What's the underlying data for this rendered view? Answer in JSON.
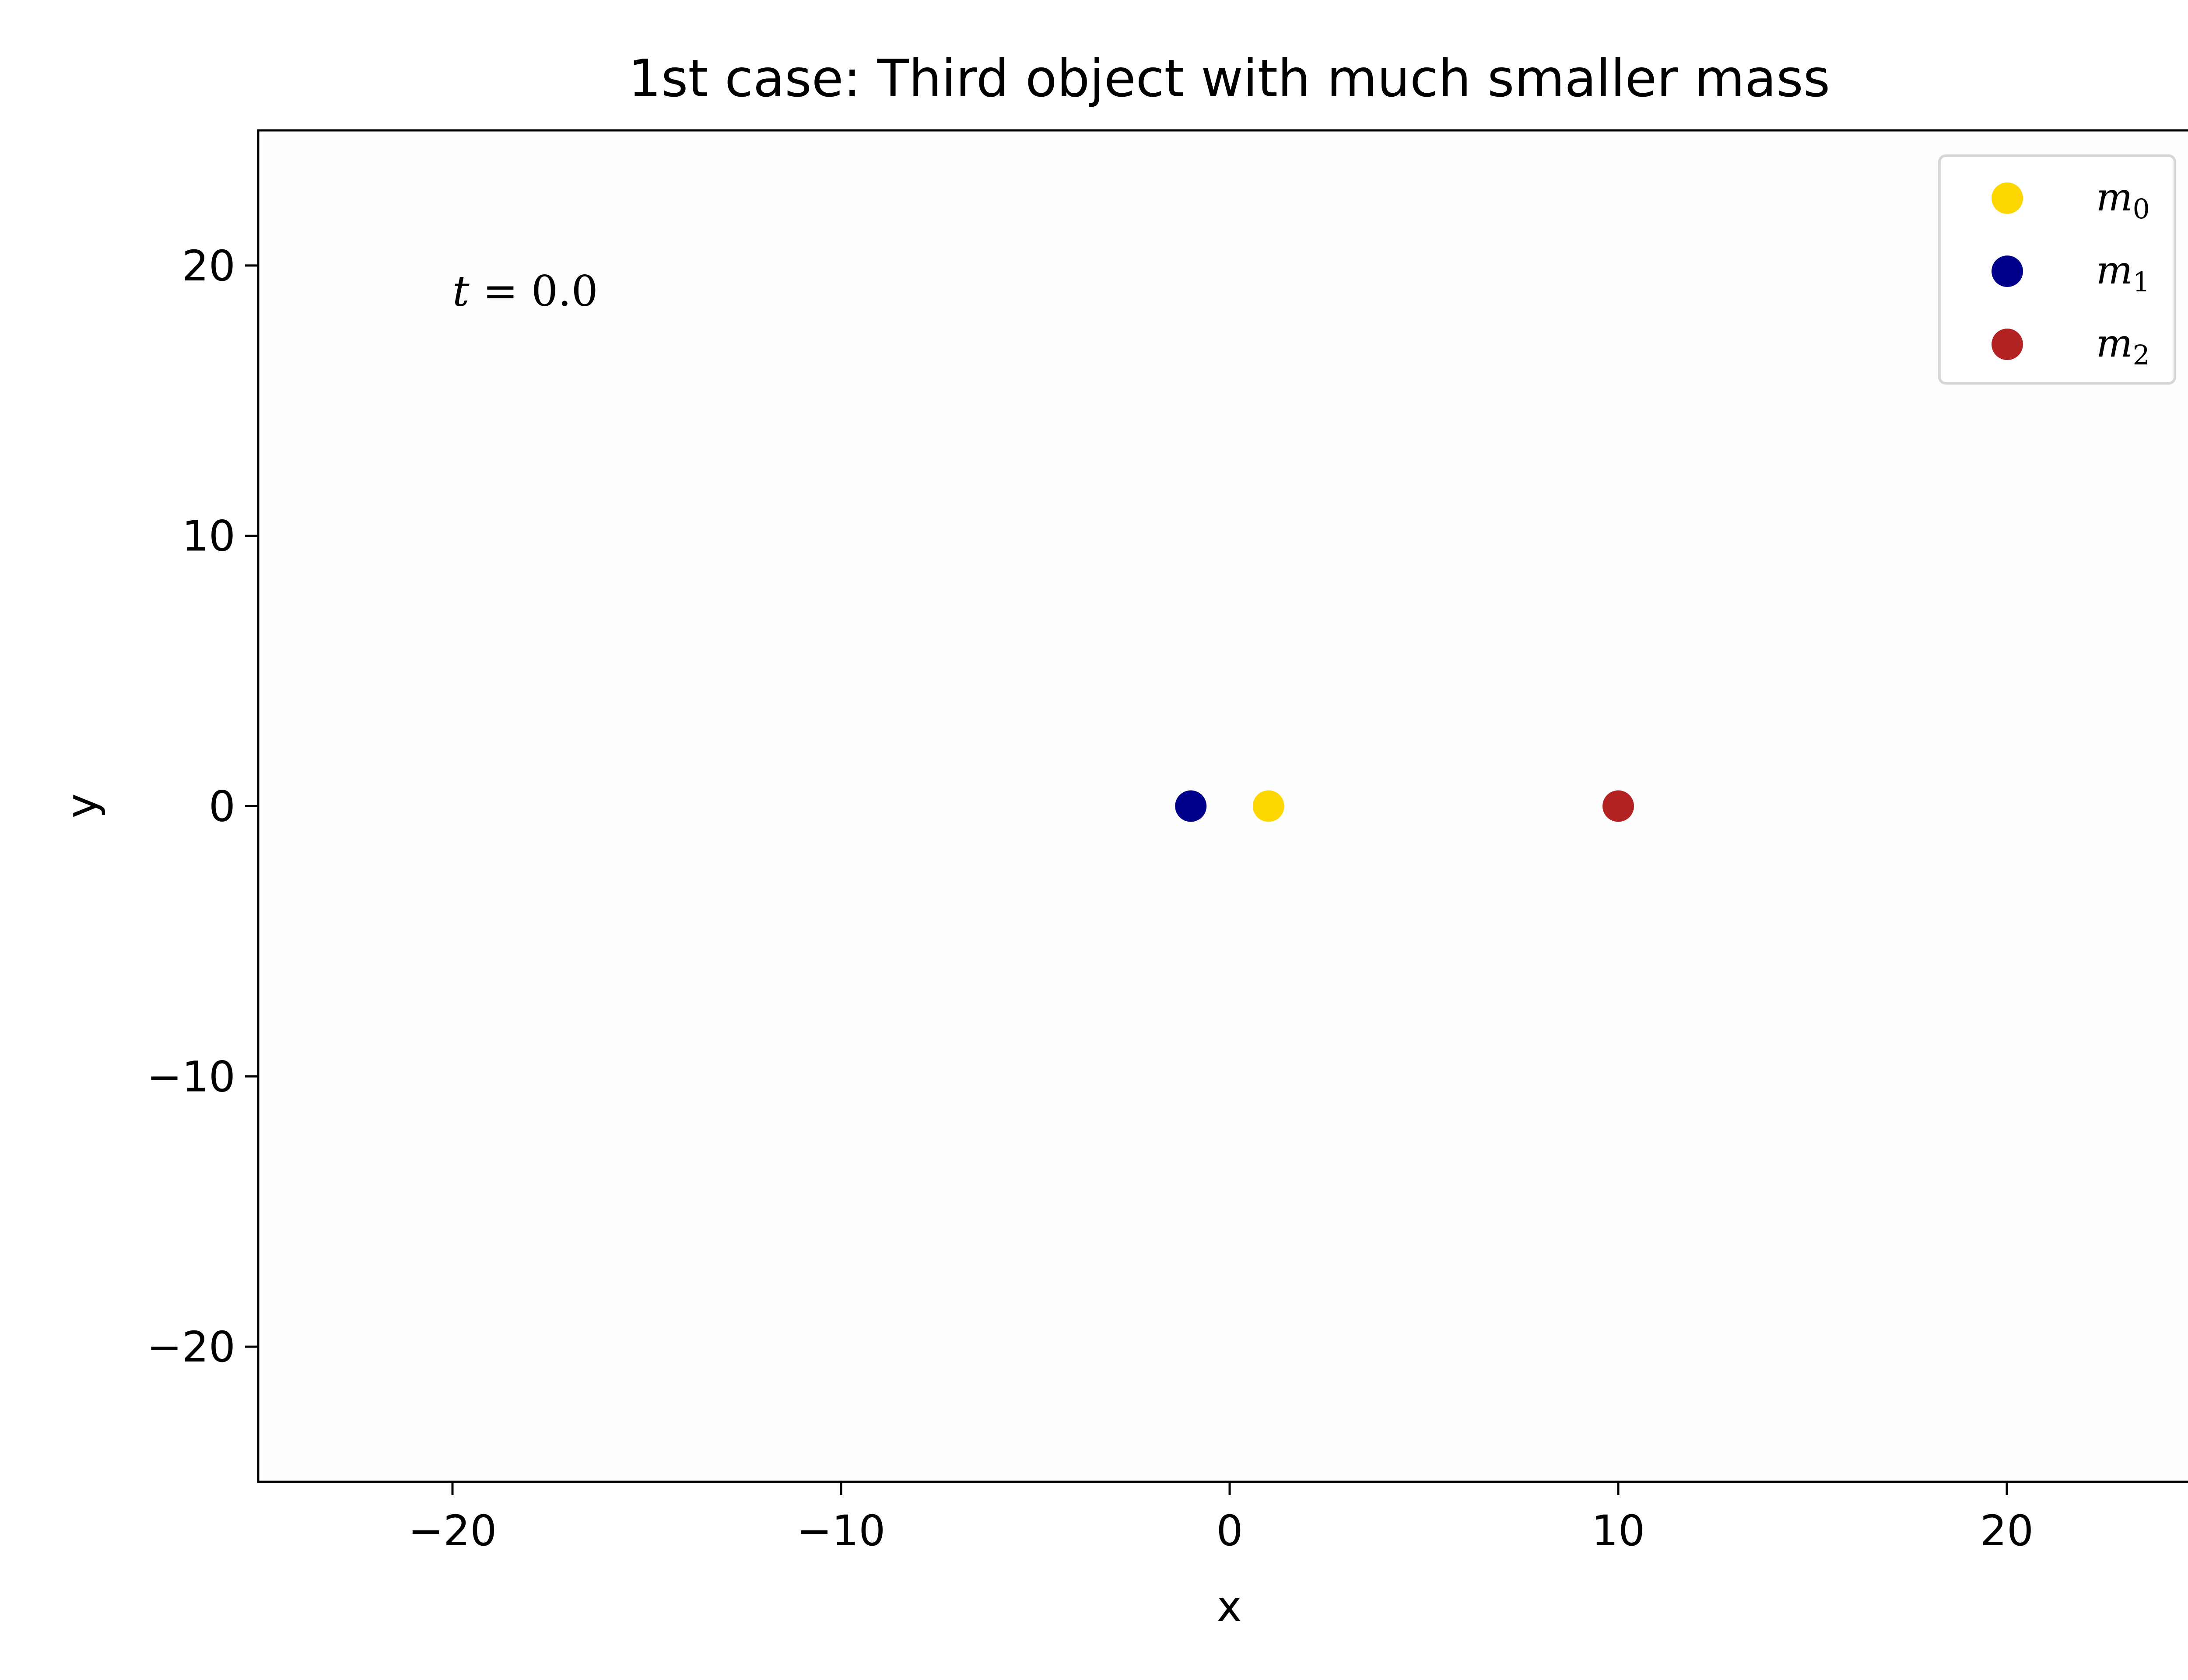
{
  "chart_data": {
    "type": "scatter",
    "title": "1st case: Third object with much smaller mass",
    "xlabel": "x",
    "ylabel": "y",
    "xlim": [
      -25,
      25
    ],
    "ylim": [
      -25,
      25
    ],
    "xticks": [
      -20,
      -10,
      0,
      10,
      20
    ],
    "yticks": [
      -20,
      -10,
      0,
      10,
      20
    ],
    "xtick_labels": [
      "−20",
      "−10",
      "0",
      "10",
      "20"
    ],
    "ytick_labels": [
      "−20",
      "−10",
      "0",
      "10",
      "20"
    ],
    "grid": false,
    "legend_position": "top-right",
    "annotation": {
      "text_italic": "t",
      "text_rest": " = 0.0",
      "x": -20,
      "y": 19
    },
    "series": [
      {
        "name": "m",
        "subscript": "0",
        "color": "#FFD700",
        "x": [
          1
        ],
        "y": [
          0
        ]
      },
      {
        "name": "m",
        "subscript": "1",
        "color": "#00008B",
        "x": [
          -1
        ],
        "y": [
          0
        ]
      },
      {
        "name": "m",
        "subscript": "2",
        "color": "#B22222",
        "x": [
          10
        ],
        "y": [
          0
        ]
      }
    ]
  }
}
